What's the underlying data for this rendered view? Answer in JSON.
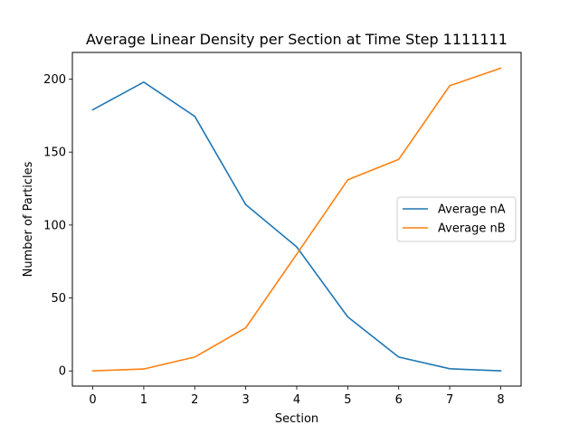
{
  "chart_data": {
    "type": "line",
    "title": "Average Linear Density per Section at Time Step 1111111",
    "xlabel": "Section",
    "ylabel": "Number of Particles",
    "x": [
      0,
      1,
      2,
      3,
      4,
      5,
      6,
      7,
      8
    ],
    "xticks": [
      0,
      1,
      2,
      3,
      4,
      5,
      6,
      7,
      8
    ],
    "yticks": [
      0,
      50,
      100,
      150,
      200
    ],
    "xlim": [
      -0.4,
      8.4
    ],
    "ylim": [
      -10.4,
      218.3
    ],
    "grid": false,
    "legend_position": "center-right",
    "series": [
      {
        "name": "Average nA",
        "color": "#1f77b4",
        "values": [
          179,
          198,
          174.5,
          114,
          85,
          37,
          9.5,
          1.5,
          0
        ]
      },
      {
        "name": "Average nB",
        "color": "#ff7f0e",
        "values": [
          0,
          1.3,
          9.5,
          29.5,
          80,
          131,
          145,
          195.5,
          207.5
        ]
      }
    ]
  }
}
